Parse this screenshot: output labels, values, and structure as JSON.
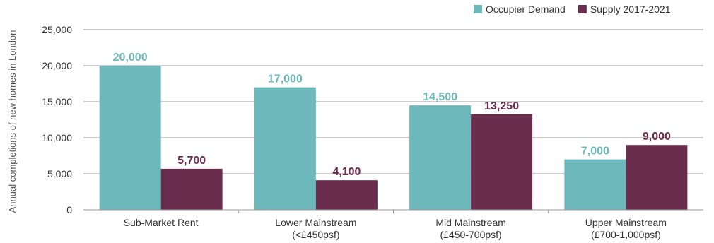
{
  "chart_data": {
    "type": "bar",
    "ylabel": "Annual completions of new homes in London",
    "ylim": [
      0,
      25000
    ],
    "yticks": [
      0,
      5000,
      10000,
      15000,
      20000,
      25000
    ],
    "ytick_labels": [
      "0",
      "5,000",
      "10,000",
      "15,000",
      "20,000",
      "25,000"
    ],
    "categories": [
      [
        "Sub-Market Rent"
      ],
      [
        "Lower Mainstream",
        "(<£450psf)"
      ],
      [
        "Mid Mainstream",
        "(£450-700psf)"
      ],
      [
        "Upper Mainstream",
        "(£700-1,000psf)"
      ]
    ],
    "series": [
      {
        "name": "Occupier Demand",
        "color": "#6db8bb",
        "values": [
          20000,
          17000,
          14500,
          7000
        ],
        "labels": [
          "20,000",
          "17,000",
          "14,500",
          "7,000"
        ]
      },
      {
        "name": "Supply 2017-2021",
        "color": "#6b2d4e",
        "values": [
          5700,
          4100,
          13250,
          9000
        ],
        "labels": [
          "5,700",
          "4,100",
          "13,250",
          "9,000"
        ]
      }
    ],
    "grid": true,
    "legend_position": "top-right"
  }
}
